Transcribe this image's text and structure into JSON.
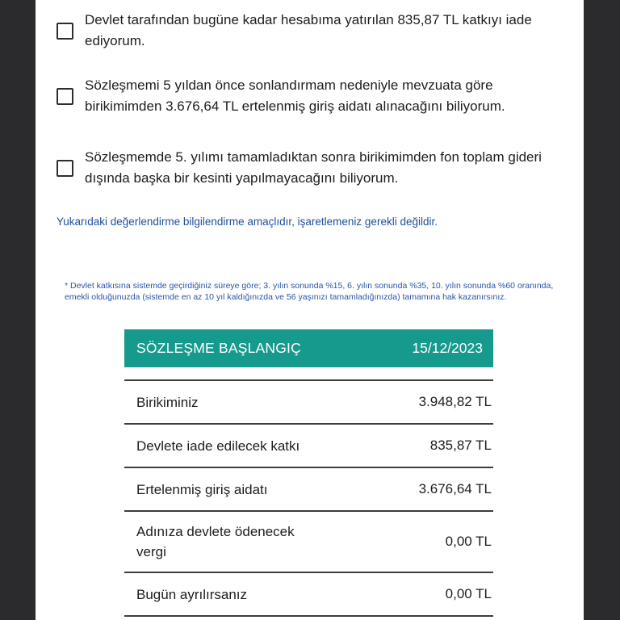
{
  "checkboxes": [
    {
      "label": "Devlet tarafından bugüne kadar hesabıma yatırılan 835,87 TL katkıyı iade ediyorum.",
      "checked": false
    },
    {
      "label": "Sözleşmemi 5 yıldan önce sonlandırmam nedeniyle mevzuata göre birikimimden 3.676,64 TL ertelenmiş giriş aidatı alınacağını biliyorum.",
      "checked": false
    },
    {
      "label": "Sözleşmemde 5. yılımı tamamladıktan sonra birikimimden fon toplam gideri dışında başka bir kesinti yapılmayacağını biliyorum.",
      "checked": false
    }
  ],
  "note": "Yukarıdaki değerlendirme bilgilendirme amaçlıdır, işaretlemeniz gerekli değildir.",
  "footnote": "* Devlet katkısına sistemde geçirdiğiniz süreye göre; 3. yılın sonunda %15, 6. yılın sonunda %35, 10. yılın sonunda %60 oranında, emekli olduğunuzda (sistemde en az 10 yıl kaldığınızda ve 56 yaşınızı tamamladığınızda) tamamına hak kazanırsınız.",
  "table": {
    "header": {
      "title": "SÖZLEŞME BAŞLANGIÇ",
      "date": "15/12/2023"
    },
    "rows": [
      {
        "label": "Birikiminiz",
        "value": "3.948,82 TL"
      },
      {
        "label": "Devlete iade edilecek katkı",
        "value": "835,87 TL"
      },
      {
        "label": "Ertelenmiş giriş aidatı",
        "value": "3.676,64 TL"
      },
      {
        "label": "Adınıza devlete ödenecek vergi",
        "value": "0,00 TL"
      },
      {
        "label": "Bugün ayrılırsanız",
        "value": "0,00 TL"
      }
    ]
  },
  "colors": {
    "accent_teal": "#179a8e",
    "note_blue": "#1e4f9f",
    "footnote_blue": "#2a55a8",
    "viewer_background": "#2b2b2d",
    "separator": "#3d3d3d"
  }
}
